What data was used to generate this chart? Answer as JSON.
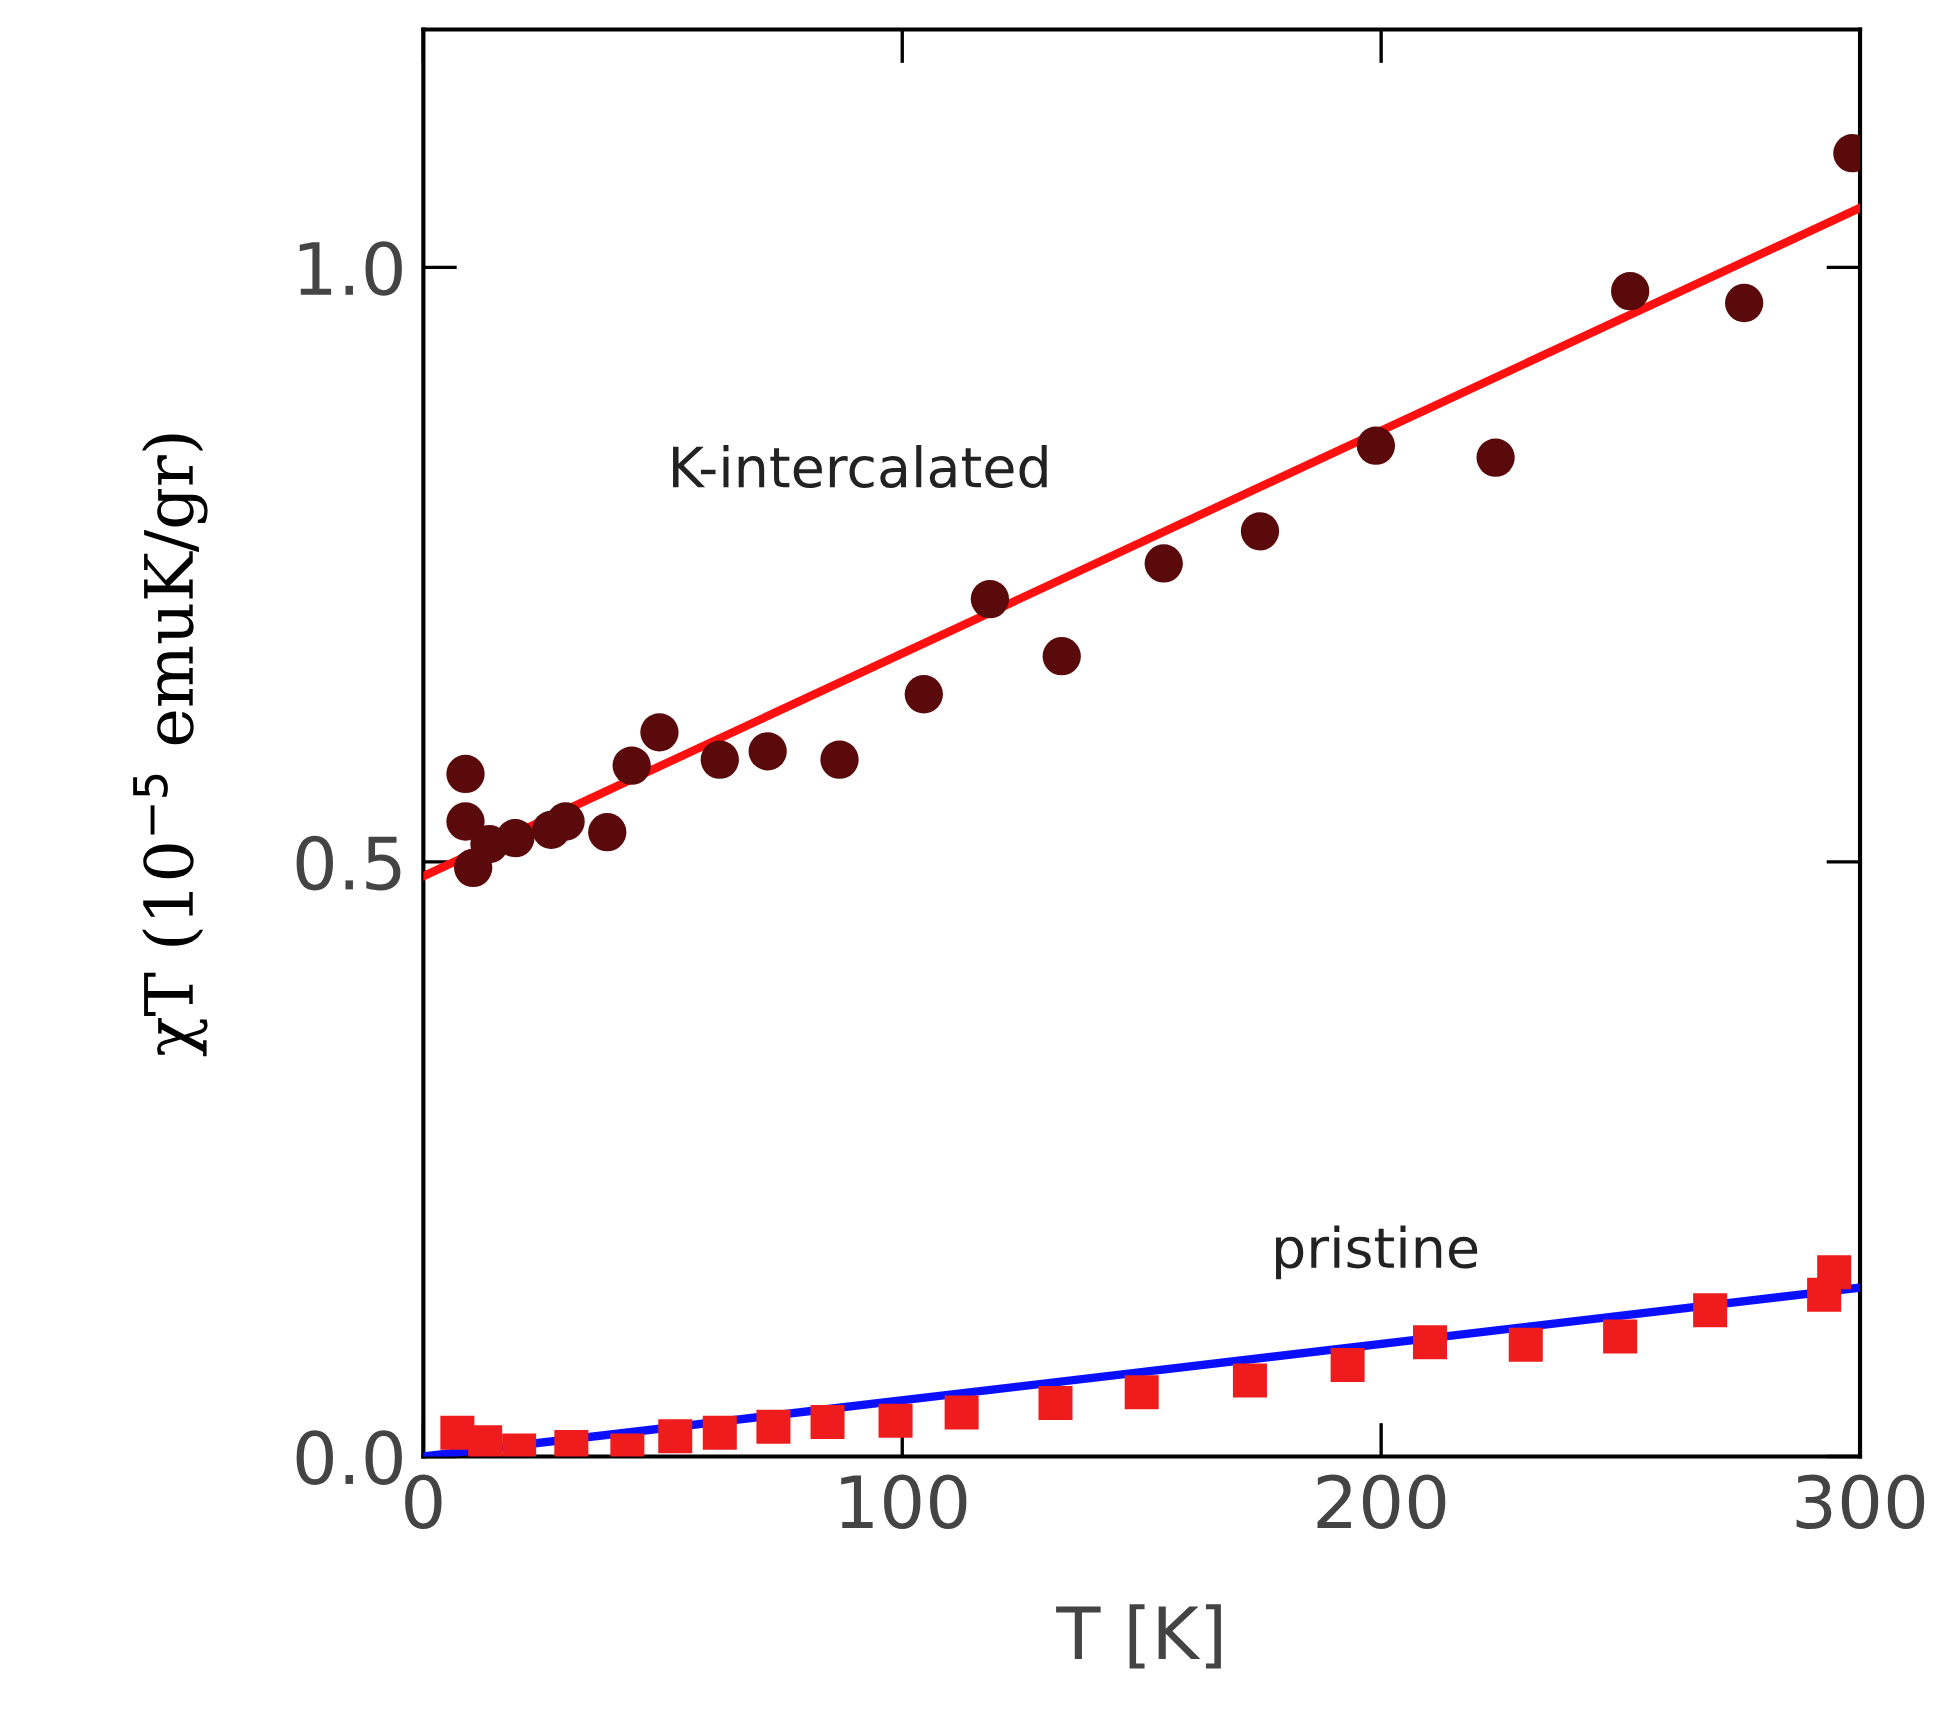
{
  "chart_data": {
    "type": "scatter",
    "xlabel": "T [K]",
    "ylabel": "χT (10$^{−5}$ emuK/gr)",
    "xlim": [
      0,
      300
    ],
    "ylim": [
      0,
      1.2
    ],
    "xticks": [
      0,
      100,
      200,
      300
    ],
    "yticks": [
      {
        "value": 0,
        "label": "0.0"
      },
      {
        "value": 0.5,
        "label": "0.5"
      },
      {
        "value": 1.0,
        "label": "1.0"
      }
    ],
    "grid": false,
    "legend": false,
    "series": [
      {
        "marker": "circle",
        "color": "#5a0a0a",
        "x": [
          8.8,
          8.8,
          10.4,
          13.8,
          19.2,
          26.7,
          29.7,
          38.4,
          43.5,
          49.3,
          61.9,
          71.9,
          86.9,
          104.5,
          118.3,
          133.3,
          154.6,
          174.7,
          198.9,
          223.9,
          252,
          275.8,
          298.4
        ],
        "values": [
          0.574,
          0.534,
          0.495,
          0.515,
          0.52,
          0.527,
          0.534,
          0.525,
          0.581,
          0.609,
          0.586,
          0.593,
          0.586,
          0.641,
          0.721,
          0.673,
          0.751,
          0.778,
          0.85,
          0.84,
          0.98,
          0.97,
          1.096
        ]
      },
      {
        "marker": "square",
        "color": "#ee1c1c",
        "x": [
          7.1,
          12.9,
          20,
          30.9,
          42.6,
          52.6,
          61.9,
          73.1,
          84.4,
          98.6,
          112.4,
          132,
          150,
          172.6,
          193,
          210.2,
          230.2,
          249.9,
          268.7,
          292.5,
          294.6
        ],
        "values": [
          0.02,
          0.012,
          0.005,
          0.008,
          0.005,
          0.017,
          0.02,
          0.025,
          0.029,
          0.03,
          0.037,
          0.045,
          0.054,
          0.064,
          0.077,
          0.096,
          0.094,
          0.101,
          0.123,
          0.136,
          0.155
        ]
      },
      {
        "type": "line",
        "marker": "none",
        "line_style": "solid",
        "color": "#ff1010",
        "x": [
          0,
          300
        ],
        "values": [
          0.488,
          1.05
        ]
      },
      {
        "type": "line",
        "marker": "none",
        "line_style": "solid",
        "color": "#0a10ff",
        "x": [
          0,
          300
        ],
        "values": [
          0.0,
          0.142
        ]
      }
    ],
    "annotations": [
      "K-intercalated",
      "pristine"
    ]
  }
}
